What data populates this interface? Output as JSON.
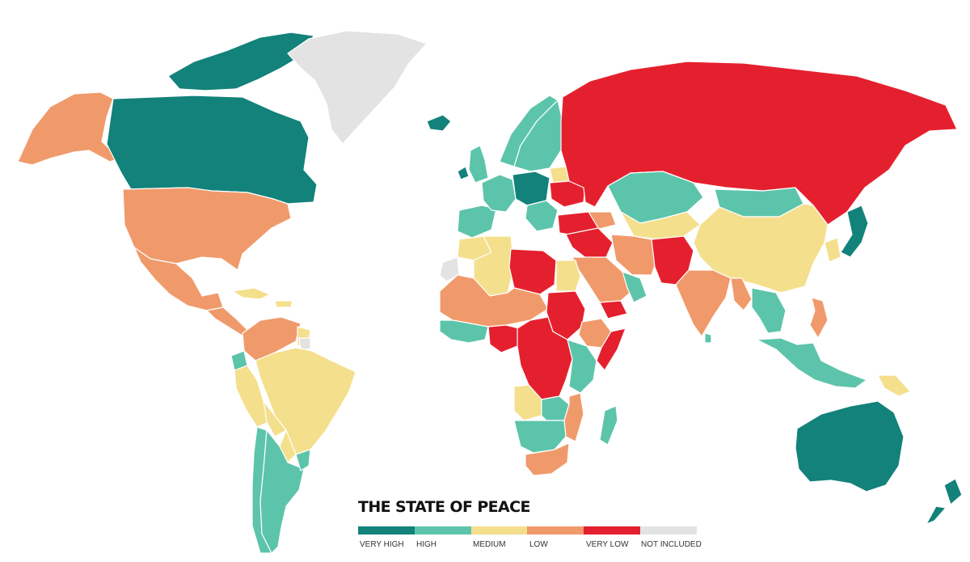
{
  "legend": {
    "title": "THE STATE OF PEACE",
    "levels": [
      {
        "label": "VERY HIGH",
        "color": "#12827a"
      },
      {
        "label": "HIGH",
        "color": "#5cc4aa"
      },
      {
        "label": "MEDIUM",
        "color": "#f4df8c"
      },
      {
        "label": "LOW",
        "color": "#f09a6b"
      },
      {
        "label": "VERY LOW",
        "color": "#e5202e"
      },
      {
        "label": "NOT INCLUDED",
        "color": "#e3e3e3"
      }
    ]
  },
  "regions": [
    {
      "name": "canada",
      "level": "VERY HIGH"
    },
    {
      "name": "canadian-arctic-islands",
      "level": "VERY HIGH"
    },
    {
      "name": "alaska",
      "level": "LOW"
    },
    {
      "name": "united-states",
      "level": "LOW"
    },
    {
      "name": "mexico",
      "level": "LOW"
    },
    {
      "name": "greenland",
      "level": "NOT INCLUDED"
    },
    {
      "name": "iceland",
      "level": "VERY HIGH"
    },
    {
      "name": "central-america",
      "level": "LOW"
    },
    {
      "name": "caribbean-islands",
      "level": "MEDIUM"
    },
    {
      "name": "colombia-venezuela",
      "level": "LOW"
    },
    {
      "name": "guyana-suriname",
      "level": "MEDIUM"
    },
    {
      "name": "french-guiana",
      "level": "NOT INCLUDED"
    },
    {
      "name": "ecuador",
      "level": "HIGH"
    },
    {
      "name": "peru",
      "level": "MEDIUM"
    },
    {
      "name": "brazil",
      "level": "MEDIUM"
    },
    {
      "name": "bolivia",
      "level": "MEDIUM"
    },
    {
      "name": "paraguay",
      "level": "MEDIUM"
    },
    {
      "name": "chile",
      "level": "HIGH"
    },
    {
      "name": "argentina",
      "level": "HIGH"
    },
    {
      "name": "uruguay",
      "level": "HIGH"
    },
    {
      "name": "ireland",
      "level": "VERY HIGH"
    },
    {
      "name": "united-kingdom",
      "level": "HIGH"
    },
    {
      "name": "norway",
      "level": "HIGH"
    },
    {
      "name": "sweden-finland",
      "level": "HIGH"
    },
    {
      "name": "iberia",
      "level": "HIGH"
    },
    {
      "name": "western-europe",
      "level": "HIGH"
    },
    {
      "name": "central-europe",
      "level": "VERY HIGH"
    },
    {
      "name": "balkans",
      "level": "HIGH"
    },
    {
      "name": "belarus",
      "level": "MEDIUM"
    },
    {
      "name": "ukraine",
      "level": "VERY LOW"
    },
    {
      "name": "turkey",
      "level": "VERY LOW"
    },
    {
      "name": "russia",
      "level": "VERY LOW"
    },
    {
      "name": "kazakhstan",
      "level": "HIGH"
    },
    {
      "name": "mongolia",
      "level": "HIGH"
    },
    {
      "name": "central-asia",
      "level": "MEDIUM"
    },
    {
      "name": "caucasus",
      "level": "LOW"
    },
    {
      "name": "iran",
      "level": "LOW"
    },
    {
      "name": "afghanistan-pakistan",
      "level": "VERY LOW"
    },
    {
      "name": "syria-iraq",
      "level": "VERY LOW"
    },
    {
      "name": "saudi-arabia",
      "level": "LOW"
    },
    {
      "name": "yemen",
      "level": "VERY LOW"
    },
    {
      "name": "oman-uae",
      "level": "HIGH"
    },
    {
      "name": "china",
      "level": "MEDIUM"
    },
    {
      "name": "india",
      "level": "LOW"
    },
    {
      "name": "sri-lanka",
      "level": "HIGH"
    },
    {
      "name": "myanmar",
      "level": "LOW"
    },
    {
      "name": "mainland-southeast-asia",
      "level": "HIGH"
    },
    {
      "name": "korea",
      "level": "MEDIUM"
    },
    {
      "name": "japan",
      "level": "VERY HIGH"
    },
    {
      "name": "philippines",
      "level": "LOW"
    },
    {
      "name": "indonesia",
      "level": "HIGH"
    },
    {
      "name": "papua-new-guinea",
      "level": "MEDIUM"
    },
    {
      "name": "australia",
      "level": "VERY HIGH"
    },
    {
      "name": "new-zealand",
      "level": "VERY HIGH"
    },
    {
      "name": "morocco",
      "level": "MEDIUM"
    },
    {
      "name": "western-sahara",
      "level": "NOT INCLUDED"
    },
    {
      "name": "algeria",
      "level": "MEDIUM"
    },
    {
      "name": "libya",
      "level": "VERY LOW"
    },
    {
      "name": "egypt",
      "level": "MEDIUM"
    },
    {
      "name": "sudan",
      "level": "VERY LOW"
    },
    {
      "name": "sahel-west",
      "level": "LOW"
    },
    {
      "name": "coastal-west-africa",
      "level": "HIGH"
    },
    {
      "name": "nigeria",
      "level": "VERY LOW"
    },
    {
      "name": "ethiopia",
      "level": "LOW"
    },
    {
      "name": "somalia",
      "level": "VERY LOW"
    },
    {
      "name": "central-africa",
      "level": "VERY LOW"
    },
    {
      "name": "east-africa",
      "level": "HIGH"
    },
    {
      "name": "angola",
      "level": "MEDIUM"
    },
    {
      "name": "zambia",
      "level": "HIGH"
    },
    {
      "name": "mozambique",
      "level": "LOW"
    },
    {
      "name": "namibia-botswana",
      "level": "HIGH"
    },
    {
      "name": "south-africa",
      "level": "LOW"
    },
    {
      "name": "madagascar",
      "level": "HIGH"
    }
  ]
}
